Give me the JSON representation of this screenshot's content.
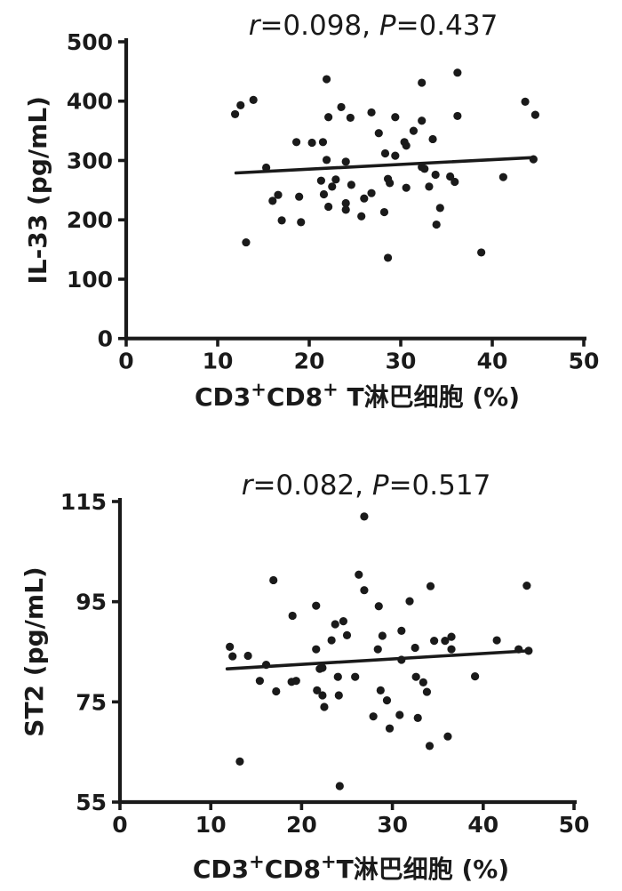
{
  "page": {
    "background": "#ffffff",
    "ink_color": "#1a1a1a",
    "figure_description": "Two stacked scatter plots with linear trend lines"
  },
  "chart_data": [
    {
      "type": "scatter",
      "title": "r=0.098, P=0.437",
      "title_segments": [
        {
          "t": "r",
          "italic": true
        },
        {
          "t": "=0.098, "
        },
        {
          "t": "P",
          "italic": true
        },
        {
          "t": "=0.437"
        }
      ],
      "xlabel": "CD3+CD8+ T淋巴细胞 (%)",
      "xlabel_segments": [
        {
          "t": "CD3"
        },
        {
          "t": "+",
          "sup": true
        },
        {
          "t": "CD8"
        },
        {
          "t": "+",
          "sup": true
        },
        {
          "t": " T淋巴细胞 (%)"
        }
      ],
      "ylabel": "IL-33 (pg/mL)",
      "xlim": [
        0,
        50
      ],
      "ylim": [
        0,
        500
      ],
      "x_ticks": [
        0,
        10,
        20,
        30,
        40,
        50
      ],
      "y_ticks": [
        0,
        100,
        200,
        300,
        400,
        500
      ],
      "grid": false,
      "legend": "none",
      "marker_color": "#1a1a1a",
      "trend_line": {
        "x1": 12.0,
        "y1": 279,
        "x2": 44.5,
        "y2": 305
      },
      "points": [
        [
          21.9,
          437
        ],
        [
          12.5,
          393
        ],
        [
          13.9,
          402
        ],
        [
          11.9,
          378
        ],
        [
          23.5,
          390
        ],
        [
          22.1,
          373
        ],
        [
          24.5,
          372
        ],
        [
          26.8,
          381
        ],
        [
          29.4,
          373
        ],
        [
          27.6,
          346
        ],
        [
          18.6,
          331
        ],
        [
          20.3,
          330
        ],
        [
          21.5,
          331
        ],
        [
          28.3,
          312
        ],
        [
          29.4,
          308
        ],
        [
          21.9,
          301
        ],
        [
          24.0,
          298
        ],
        [
          15.3,
          288
        ],
        [
          36.2,
          448
        ],
        [
          32.3,
          431
        ],
        [
          43.6,
          399
        ],
        [
          44.7,
          377
        ],
        [
          36.2,
          375
        ],
        [
          32.3,
          367
        ],
        [
          31.4,
          350
        ],
        [
          30.4,
          331
        ],
        [
          30.6,
          325
        ],
        [
          33.5,
          336
        ],
        [
          32.3,
          289
        ],
        [
          21.3,
          266
        ],
        [
          22.9,
          268
        ],
        [
          28.6,
          269
        ],
        [
          28.8,
          262
        ],
        [
          24.6,
          259
        ],
        [
          22.5,
          256
        ],
        [
          21.6,
          243
        ],
        [
          16.6,
          242
        ],
        [
          16.0,
          232
        ],
        [
          18.9,
          239
        ],
        [
          22.1,
          222
        ],
        [
          24.0,
          228
        ],
        [
          24.0,
          217
        ],
        [
          26.8,
          245
        ],
        [
          26.0,
          236
        ],
        [
          25.7,
          206
        ],
        [
          28.2,
          213
        ],
        [
          17.0,
          199
        ],
        [
          19.1,
          196
        ],
        [
          13.1,
          162
        ],
        [
          28.6,
          136
        ],
        [
          32.6,
          286
        ],
        [
          33.8,
          276
        ],
        [
          35.4,
          273
        ],
        [
          35.9,
          264
        ],
        [
          30.6,
          254
        ],
        [
          33.1,
          256
        ],
        [
          41.2,
          272
        ],
        [
          34.3,
          220
        ],
        [
          33.9,
          192
        ],
        [
          38.8,
          145
        ],
        [
          44.5,
          302
        ]
      ]
    },
    {
      "type": "scatter",
      "title": "r=0.082, P=0.517",
      "title_segments": [
        {
          "t": "r",
          "italic": true
        },
        {
          "t": "=0.082, "
        },
        {
          "t": "P",
          "italic": true
        },
        {
          "t": "=0.517"
        }
      ],
      "xlabel": "CD3+CD8+T淋巴细胞 (%)",
      "xlabel_segments": [
        {
          "t": "CD3"
        },
        {
          "t": "+",
          "sup": true
        },
        {
          "t": "CD8"
        },
        {
          "t": "+",
          "sup": true
        },
        {
          "t": "T淋巴细胞 (%)"
        }
      ],
      "ylabel": "ST2 (pg/mL)",
      "xlim": [
        0,
        50
      ],
      "ylim": [
        55,
        115
      ],
      "x_ticks": [
        0,
        10,
        20,
        30,
        40,
        50
      ],
      "y_ticks": [
        55,
        75,
        95,
        115
      ],
      "grid": false,
      "legend": "none",
      "marker_color": "#1a1a1a",
      "trend_line": {
        "x1": 11.8,
        "y1": 81.6,
        "x2": 45.0,
        "y2": 85.2
      },
      "points": [
        [
          26.9,
          112.0
        ],
        [
          16.9,
          99.3
        ],
        [
          26.3,
          100.4
        ],
        [
          26.9,
          97.3
        ],
        [
          21.6,
          94.2
        ],
        [
          28.5,
          94.1
        ],
        [
          19.0,
          92.2
        ],
        [
          23.7,
          90.5
        ],
        [
          24.6,
          91.1
        ],
        [
          25.0,
          88.3
        ],
        [
          23.3,
          87.3
        ],
        [
          28.9,
          88.2
        ],
        [
          34.2,
          98.1
        ],
        [
          44.8,
          98.2
        ],
        [
          31.9,
          95.1
        ],
        [
          31.0,
          89.2
        ],
        [
          34.6,
          87.2
        ],
        [
          35.8,
          87.2
        ],
        [
          36.5,
          88.0
        ],
        [
          41.5,
          87.3
        ],
        [
          12.1,
          86.0
        ],
        [
          12.4,
          84.1
        ],
        [
          14.1,
          84.2
        ],
        [
          21.6,
          85.5
        ],
        [
          28.4,
          85.5
        ],
        [
          16.1,
          82.4
        ],
        [
          22.0,
          81.6
        ],
        [
          22.3,
          81.8
        ],
        [
          15.4,
          79.2
        ],
        [
          17.2,
          77.1
        ],
        [
          18.9,
          79.0
        ],
        [
          19.4,
          79.2
        ],
        [
          21.7,
          77.3
        ],
        [
          22.3,
          76.3
        ],
        [
          24.0,
          80.0
        ],
        [
          25.9,
          80.0
        ],
        [
          24.1,
          76.3
        ],
        [
          22.5,
          74.0
        ],
        [
          27.9,
          72.1
        ],
        [
          28.7,
          77.3
        ],
        [
          29.4,
          75.3
        ],
        [
          13.2,
          63.1
        ],
        [
          24.2,
          58.2
        ],
        [
          32.5,
          85.8
        ],
        [
          36.5,
          85.5
        ],
        [
          43.9,
          85.5
        ],
        [
          45.0,
          85.2
        ],
        [
          31.0,
          83.4
        ],
        [
          32.6,
          80.0
        ],
        [
          33.4,
          78.9
        ],
        [
          33.8,
          77.0
        ],
        [
          39.1,
          80.1
        ],
        [
          30.8,
          72.4
        ],
        [
          32.8,
          71.8
        ],
        [
          29.7,
          69.7
        ],
        [
          36.1,
          68.1
        ],
        [
          34.1,
          66.2
        ]
      ]
    }
  ]
}
